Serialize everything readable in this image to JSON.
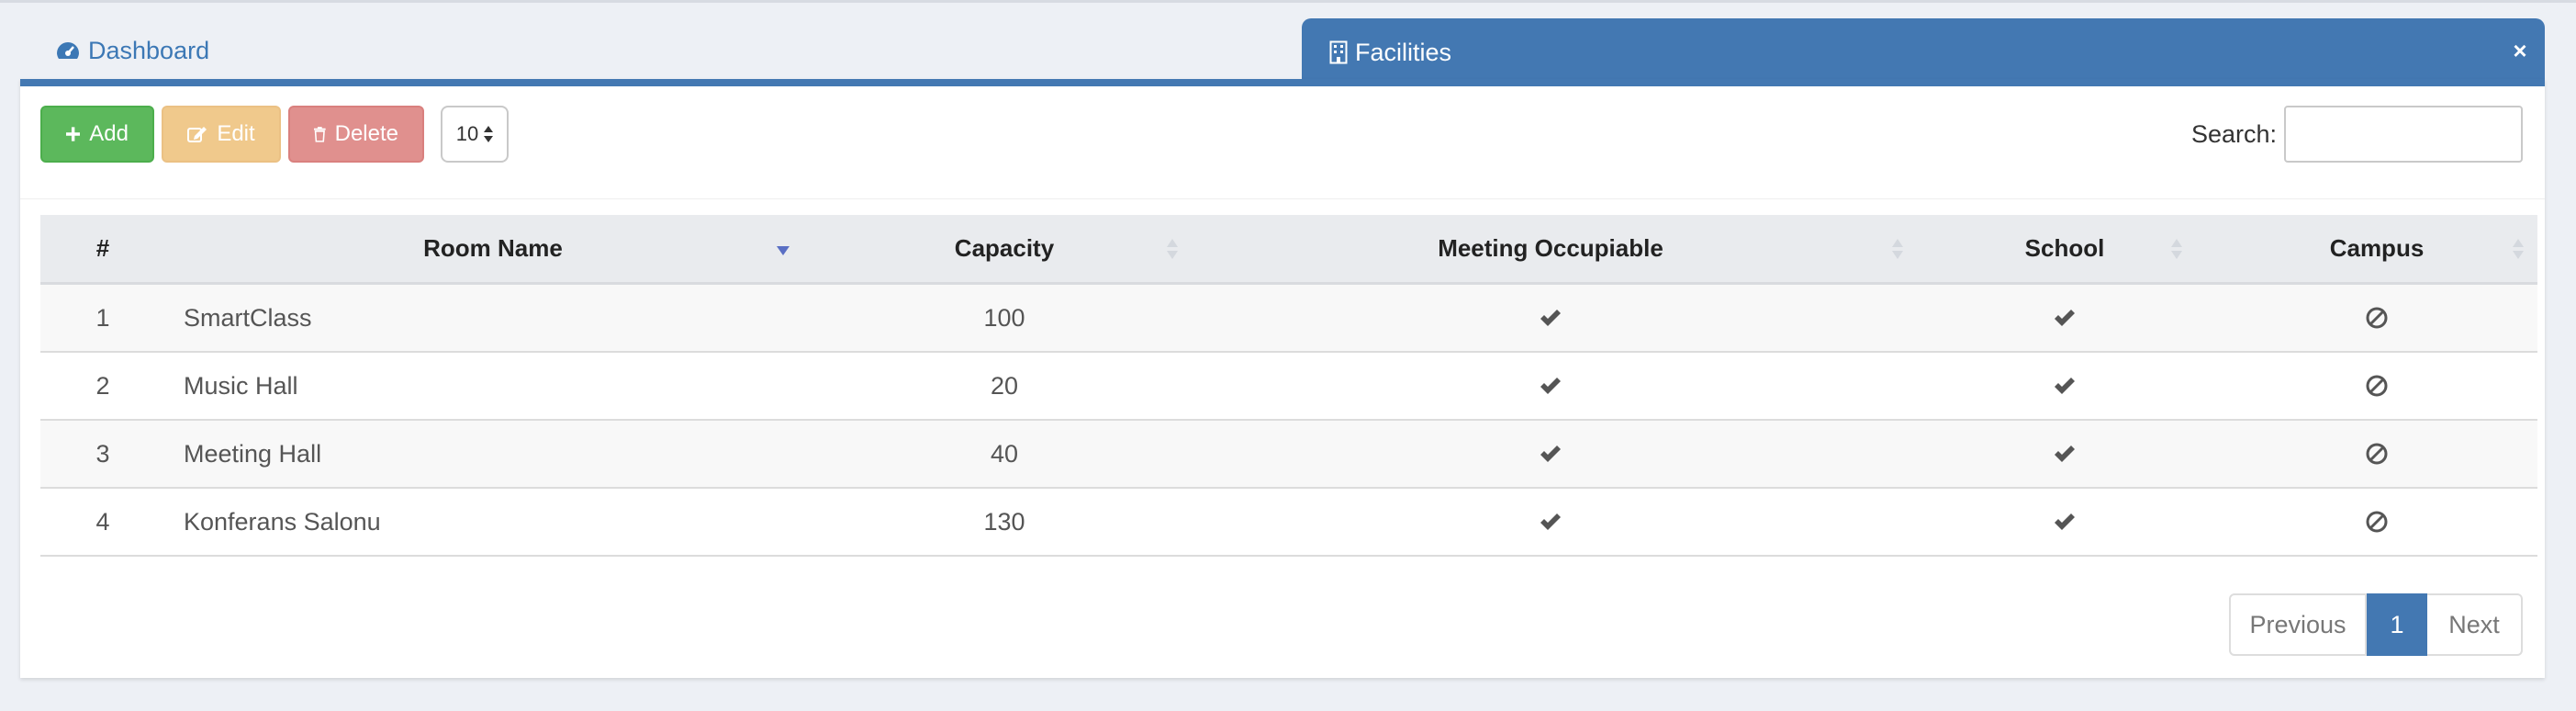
{
  "tabs": {
    "dashboard": {
      "label": "Dashboard",
      "icon": "dashboard-icon"
    },
    "facilities": {
      "label": "Facilities",
      "icon": "building-icon",
      "close": "close-icon"
    }
  },
  "toolbar": {
    "add_label": "Add",
    "edit_label": "Edit",
    "delete_label": "Delete",
    "page_size": "10",
    "search_label": "Search:",
    "search_value": ""
  },
  "table": {
    "columns": [
      "#",
      "Room Name",
      "Capacity",
      "Meeting Occupiable",
      "School",
      "Campus"
    ],
    "rows": [
      {
        "num": "1",
        "room": "SmartClass",
        "capacity": "100",
        "meeting": "check",
        "school": "check",
        "campus": "ban"
      },
      {
        "num": "2",
        "room": "Music Hall",
        "capacity": "20",
        "meeting": "check",
        "school": "check",
        "campus": "ban"
      },
      {
        "num": "3",
        "room": "Meeting Hall",
        "capacity": "40",
        "meeting": "check",
        "school": "check",
        "campus": "ban"
      },
      {
        "num": "4",
        "room": "Konferans Salonu",
        "capacity": "130",
        "meeting": "check",
        "school": "check",
        "campus": "ban"
      }
    ]
  },
  "pagination": {
    "previous": "Previous",
    "current": "1",
    "next": "Next"
  },
  "colors": {
    "primary": "#4378b2",
    "success": "#5cb85c",
    "warning": "#f0c98c",
    "danger": "#e0908e"
  }
}
